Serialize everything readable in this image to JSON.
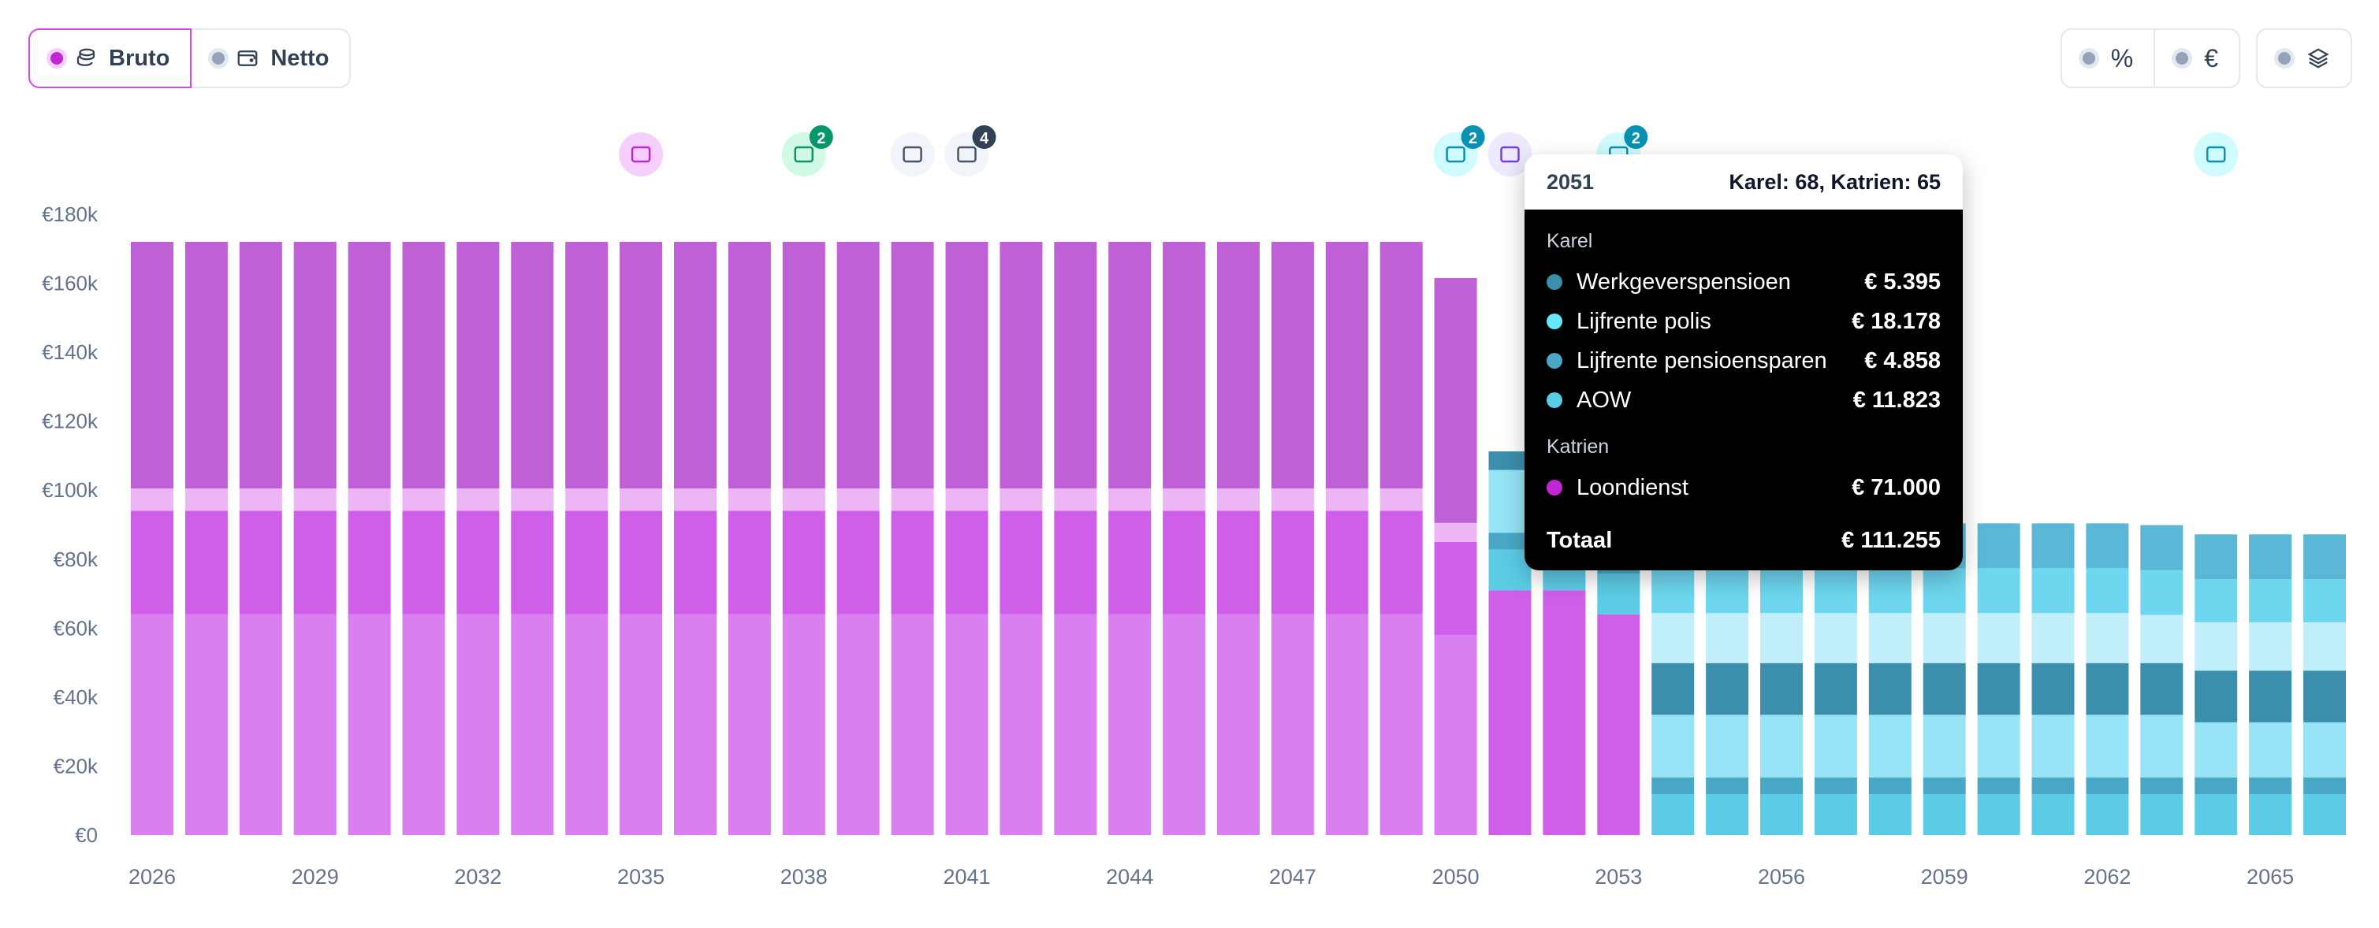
{
  "toggle": {
    "bruto_label": "Bruto",
    "netto_label": "Netto"
  },
  "tools": {
    "percent_symbol": "%",
    "euro_symbol": "€"
  },
  "event_badges": [
    {
      "year": 2035,
      "icon": "banknote-icon",
      "count": null,
      "color": "#f5d0fe",
      "fg": "#c026d3"
    },
    {
      "year": 2038,
      "icon": "home-icon",
      "count": "2",
      "color": "#d1fae5",
      "fg": "#059669"
    },
    {
      "year": 2040,
      "icon": "family-icon",
      "count": null,
      "color": "#f1f5f9",
      "fg": "#475569"
    },
    {
      "year": 2041,
      "icon": "family-icon",
      "count": "4",
      "color": "#f1f5f9",
      "fg": "#475569"
    },
    {
      "year": 2050,
      "icon": "beach-chair-icon",
      "count": "2",
      "color": "#cffafe",
      "fg": "#0891b2"
    },
    {
      "year": 2051,
      "icon": "trend-chart-icon",
      "count": null,
      "color": "#ede9fe",
      "fg": "#7c3aed"
    },
    {
      "year": 2053,
      "icon": "beach-chair-icon",
      "count": "2",
      "color": "#cffafe",
      "fg": "#0891b2"
    },
    {
      "year": 2064,
      "icon": "beach-chair-icon",
      "count": null,
      "color": "#cffafe",
      "fg": "#0891b2"
    }
  ],
  "tooltip": {
    "year": "2051",
    "ages": "Karel: 68, Katrien: 65",
    "persons": [
      {
        "name": "Karel",
        "items": [
          {
            "label": "Werkgeverspensioen",
            "value": "€ 5.395",
            "color": "#3b8fad"
          },
          {
            "label": "Lijfrente polis",
            "value": "€ 18.178",
            "color": "#67e8f9"
          },
          {
            "label": "Lijfrente pensioensparen",
            "value": "€ 4.858",
            "color": "#4aa8c7"
          },
          {
            "label": "AOW",
            "value": "€ 11.823",
            "color": "#5ccbe6"
          }
        ]
      },
      {
        "name": "Katrien",
        "items": [
          {
            "label": "Loondienst",
            "value": "€ 71.000",
            "color": "#c026d3"
          }
        ]
      }
    ],
    "total_label": "Totaal",
    "total_value": "€ 111.255"
  },
  "chart_data": {
    "type": "bar",
    "stacked": true,
    "categories": [
      2026,
      2027,
      2028,
      2029,
      2030,
      2031,
      2032,
      2033,
      2034,
      2035,
      2036,
      2037,
      2038,
      2039,
      2040,
      2041,
      2042,
      2043,
      2044,
      2045,
      2046,
      2047,
      2048,
      2049,
      2050,
      2051,
      2052,
      2053,
      2054,
      2055,
      2056,
      2057,
      2058,
      2059,
      2060,
      2061,
      2062,
      2063,
      2064,
      2065,
      2066
    ],
    "x_tick_labels": [
      "2026",
      "2029",
      "2032",
      "2035",
      "2038",
      "2041",
      "2044",
      "2047",
      "2050",
      "2053",
      "2056",
      "2059",
      "2062",
      "2065"
    ],
    "y_tick_labels": [
      "€0",
      "€20k",
      "€40k",
      "€60k",
      "€80k",
      "€100k",
      "€120k",
      "€140k",
      "€160k",
      "€180k"
    ],
    "ylim": [
      0,
      180000
    ],
    "colors": {
      "s1": "#d97fef",
      "s2": "#cf5fe8",
      "s3": "#ecb6f5",
      "s4": "#c060d6",
      "k_aow": "#5ccbe6",
      "k_lpp": "#4aa8c7",
      "k_lp": "#96e4f5",
      "k_wgp": "#3b8fad",
      "k_x": "#c0eef9",
      "k_y": "#6ed6ef",
      "k_z": "#5ab8d6"
    },
    "series": [
      {
        "key": "s1",
        "values": [
          64000,
          64000,
          64000,
          64000,
          64000,
          64000,
          64000,
          64000,
          64000,
          64000,
          64000,
          64000,
          64000,
          64000,
          64000,
          64000,
          64000,
          64000,
          64000,
          64000,
          64000,
          64000,
          64000,
          64000,
          58000,
          0,
          0,
          0,
          0,
          0,
          0,
          0,
          0,
          0,
          0,
          0,
          0,
          0,
          0,
          0,
          0
        ]
      },
      {
        "key": "s2",
        "values": [
          30000,
          30000,
          30000,
          30000,
          30000,
          30000,
          30000,
          30000,
          30000,
          30000,
          30000,
          30000,
          30000,
          30000,
          30000,
          30000,
          30000,
          30000,
          30000,
          30000,
          30000,
          30000,
          30000,
          30000,
          27000,
          71000,
          71000,
          64000,
          0,
          0,
          0,
          0,
          0,
          0,
          0,
          0,
          0,
          0,
          0,
          0,
          0
        ]
      },
      {
        "key": "s3",
        "values": [
          6500,
          6500,
          6500,
          6500,
          6500,
          6500,
          6500,
          6500,
          6500,
          6500,
          6500,
          6500,
          6500,
          6500,
          6500,
          6500,
          6500,
          6500,
          6500,
          6500,
          6500,
          6500,
          6500,
          6500,
          5500,
          0,
          0,
          0,
          0,
          0,
          0,
          0,
          0,
          0,
          0,
          0,
          0,
          0,
          0,
          0,
          0
        ]
      },
      {
        "key": "s4",
        "values": [
          71500,
          71500,
          71500,
          71500,
          71500,
          71500,
          71500,
          71500,
          71500,
          71500,
          71500,
          71500,
          71500,
          71500,
          71500,
          71500,
          71500,
          71500,
          71500,
          71500,
          71500,
          71500,
          71500,
          71500,
          71000,
          0,
          0,
          0,
          0,
          0,
          0,
          0,
          0,
          0,
          0,
          0,
          0,
          0,
          0,
          0,
          0
        ]
      },
      {
        "key": "k_aow",
        "values": [
          0,
          0,
          0,
          0,
          0,
          0,
          0,
          0,
          0,
          0,
          0,
          0,
          0,
          0,
          0,
          0,
          0,
          0,
          0,
          0,
          0,
          0,
          0,
          0,
          0,
          11823,
          11823,
          11823,
          11823,
          11823,
          11823,
          11823,
          11823,
          11823,
          11823,
          11823,
          11823,
          11823,
          11823,
          11823,
          11823
        ]
      },
      {
        "key": "k_lpp",
        "values": [
          0,
          0,
          0,
          0,
          0,
          0,
          0,
          0,
          0,
          0,
          0,
          0,
          0,
          0,
          0,
          0,
          0,
          0,
          0,
          0,
          0,
          0,
          0,
          0,
          0,
          4858,
          4858,
          4858,
          4858,
          4858,
          4858,
          4858,
          4858,
          4858,
          4858,
          4858,
          4858,
          4858,
          4858,
          4858,
          4858
        ]
      },
      {
        "key": "k_lp",
        "values": [
          0,
          0,
          0,
          0,
          0,
          0,
          0,
          0,
          0,
          0,
          0,
          0,
          0,
          0,
          0,
          0,
          0,
          0,
          0,
          0,
          0,
          0,
          0,
          0,
          0,
          18178,
          18178,
          18178,
          18178,
          18178,
          18178,
          18178,
          18178,
          18178,
          18178,
          18178,
          18178,
          18178,
          16000,
          16000,
          16000
        ]
      },
      {
        "key": "k_wgp",
        "values": [
          0,
          0,
          0,
          0,
          0,
          0,
          0,
          0,
          0,
          0,
          0,
          0,
          0,
          0,
          0,
          0,
          0,
          0,
          0,
          0,
          0,
          0,
          0,
          0,
          0,
          5395,
          5395,
          5395,
          15000,
          15000,
          15000,
          15000,
          15000,
          15000,
          15000,
          15000,
          15000,
          15000,
          15000,
          15000,
          15000
        ]
      },
      {
        "key": "k_x",
        "values": [
          0,
          0,
          0,
          0,
          0,
          0,
          0,
          0,
          0,
          0,
          0,
          0,
          0,
          0,
          0,
          0,
          0,
          0,
          0,
          0,
          0,
          0,
          0,
          0,
          0,
          0,
          0,
          0,
          14500,
          14500,
          14500,
          14500,
          14500,
          14500,
          14500,
          14500,
          14500,
          14000,
          14000,
          14000,
          14000
        ]
      },
      {
        "key": "k_y",
        "values": [
          0,
          0,
          0,
          0,
          0,
          0,
          0,
          0,
          0,
          0,
          0,
          0,
          0,
          0,
          0,
          0,
          0,
          0,
          0,
          0,
          0,
          0,
          0,
          0,
          0,
          0,
          0,
          0,
          13000,
          13000,
          13000,
          13000,
          13000,
          13000,
          13000,
          13000,
          13000,
          13000,
          12500,
          12500,
          12500
        ]
      },
      {
        "key": "k_z",
        "values": [
          0,
          0,
          0,
          0,
          0,
          0,
          0,
          0,
          0,
          0,
          0,
          0,
          0,
          0,
          0,
          0,
          0,
          0,
          0,
          0,
          0,
          0,
          0,
          0,
          0,
          0,
          0,
          0,
          13000,
          13000,
          13000,
          13000,
          13000,
          13000,
          13000,
          13000,
          13000,
          13000,
          13000,
          13000,
          13000
        ]
      }
    ]
  }
}
